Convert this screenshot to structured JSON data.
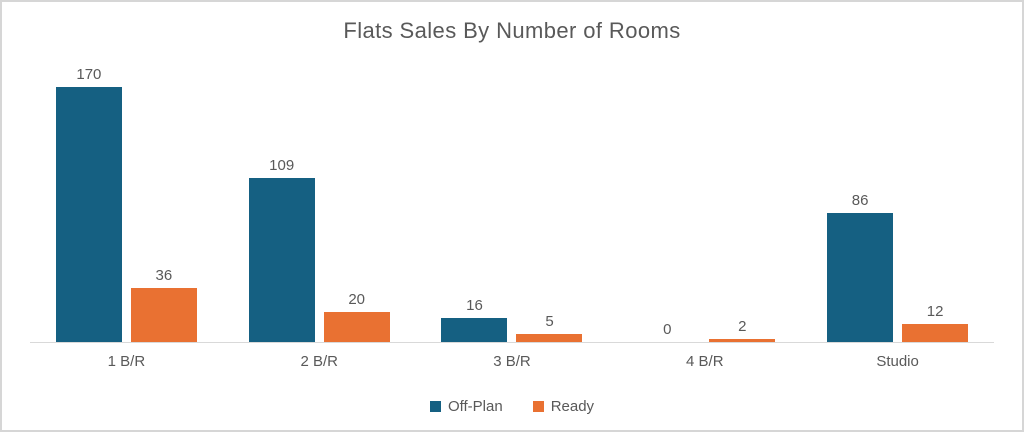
{
  "chart_data": {
    "type": "bar",
    "title": "Flats Sales By Number of Rooms",
    "categories": [
      "1 B/R",
      "2 B/R",
      "3 B/R",
      "4 B/R",
      "Studio"
    ],
    "series": [
      {
        "name": "Off-Plan",
        "color": "#156082",
        "values": [
          170,
          109,
          16,
          0,
          86
        ]
      },
      {
        "name": "Ready",
        "color": "#E97132",
        "values": [
          36,
          20,
          5,
          2,
          12
        ]
      }
    ],
    "ylim": [
      0,
      188
    ],
    "data_labels": true,
    "grid": false,
    "legend_position": "bottom",
    "colors": {
      "label_text": "#595959",
      "axis_line": "#D9D9D9",
      "figure_border": "#D6D6D6",
      "background": "#FFFFFF"
    }
  }
}
